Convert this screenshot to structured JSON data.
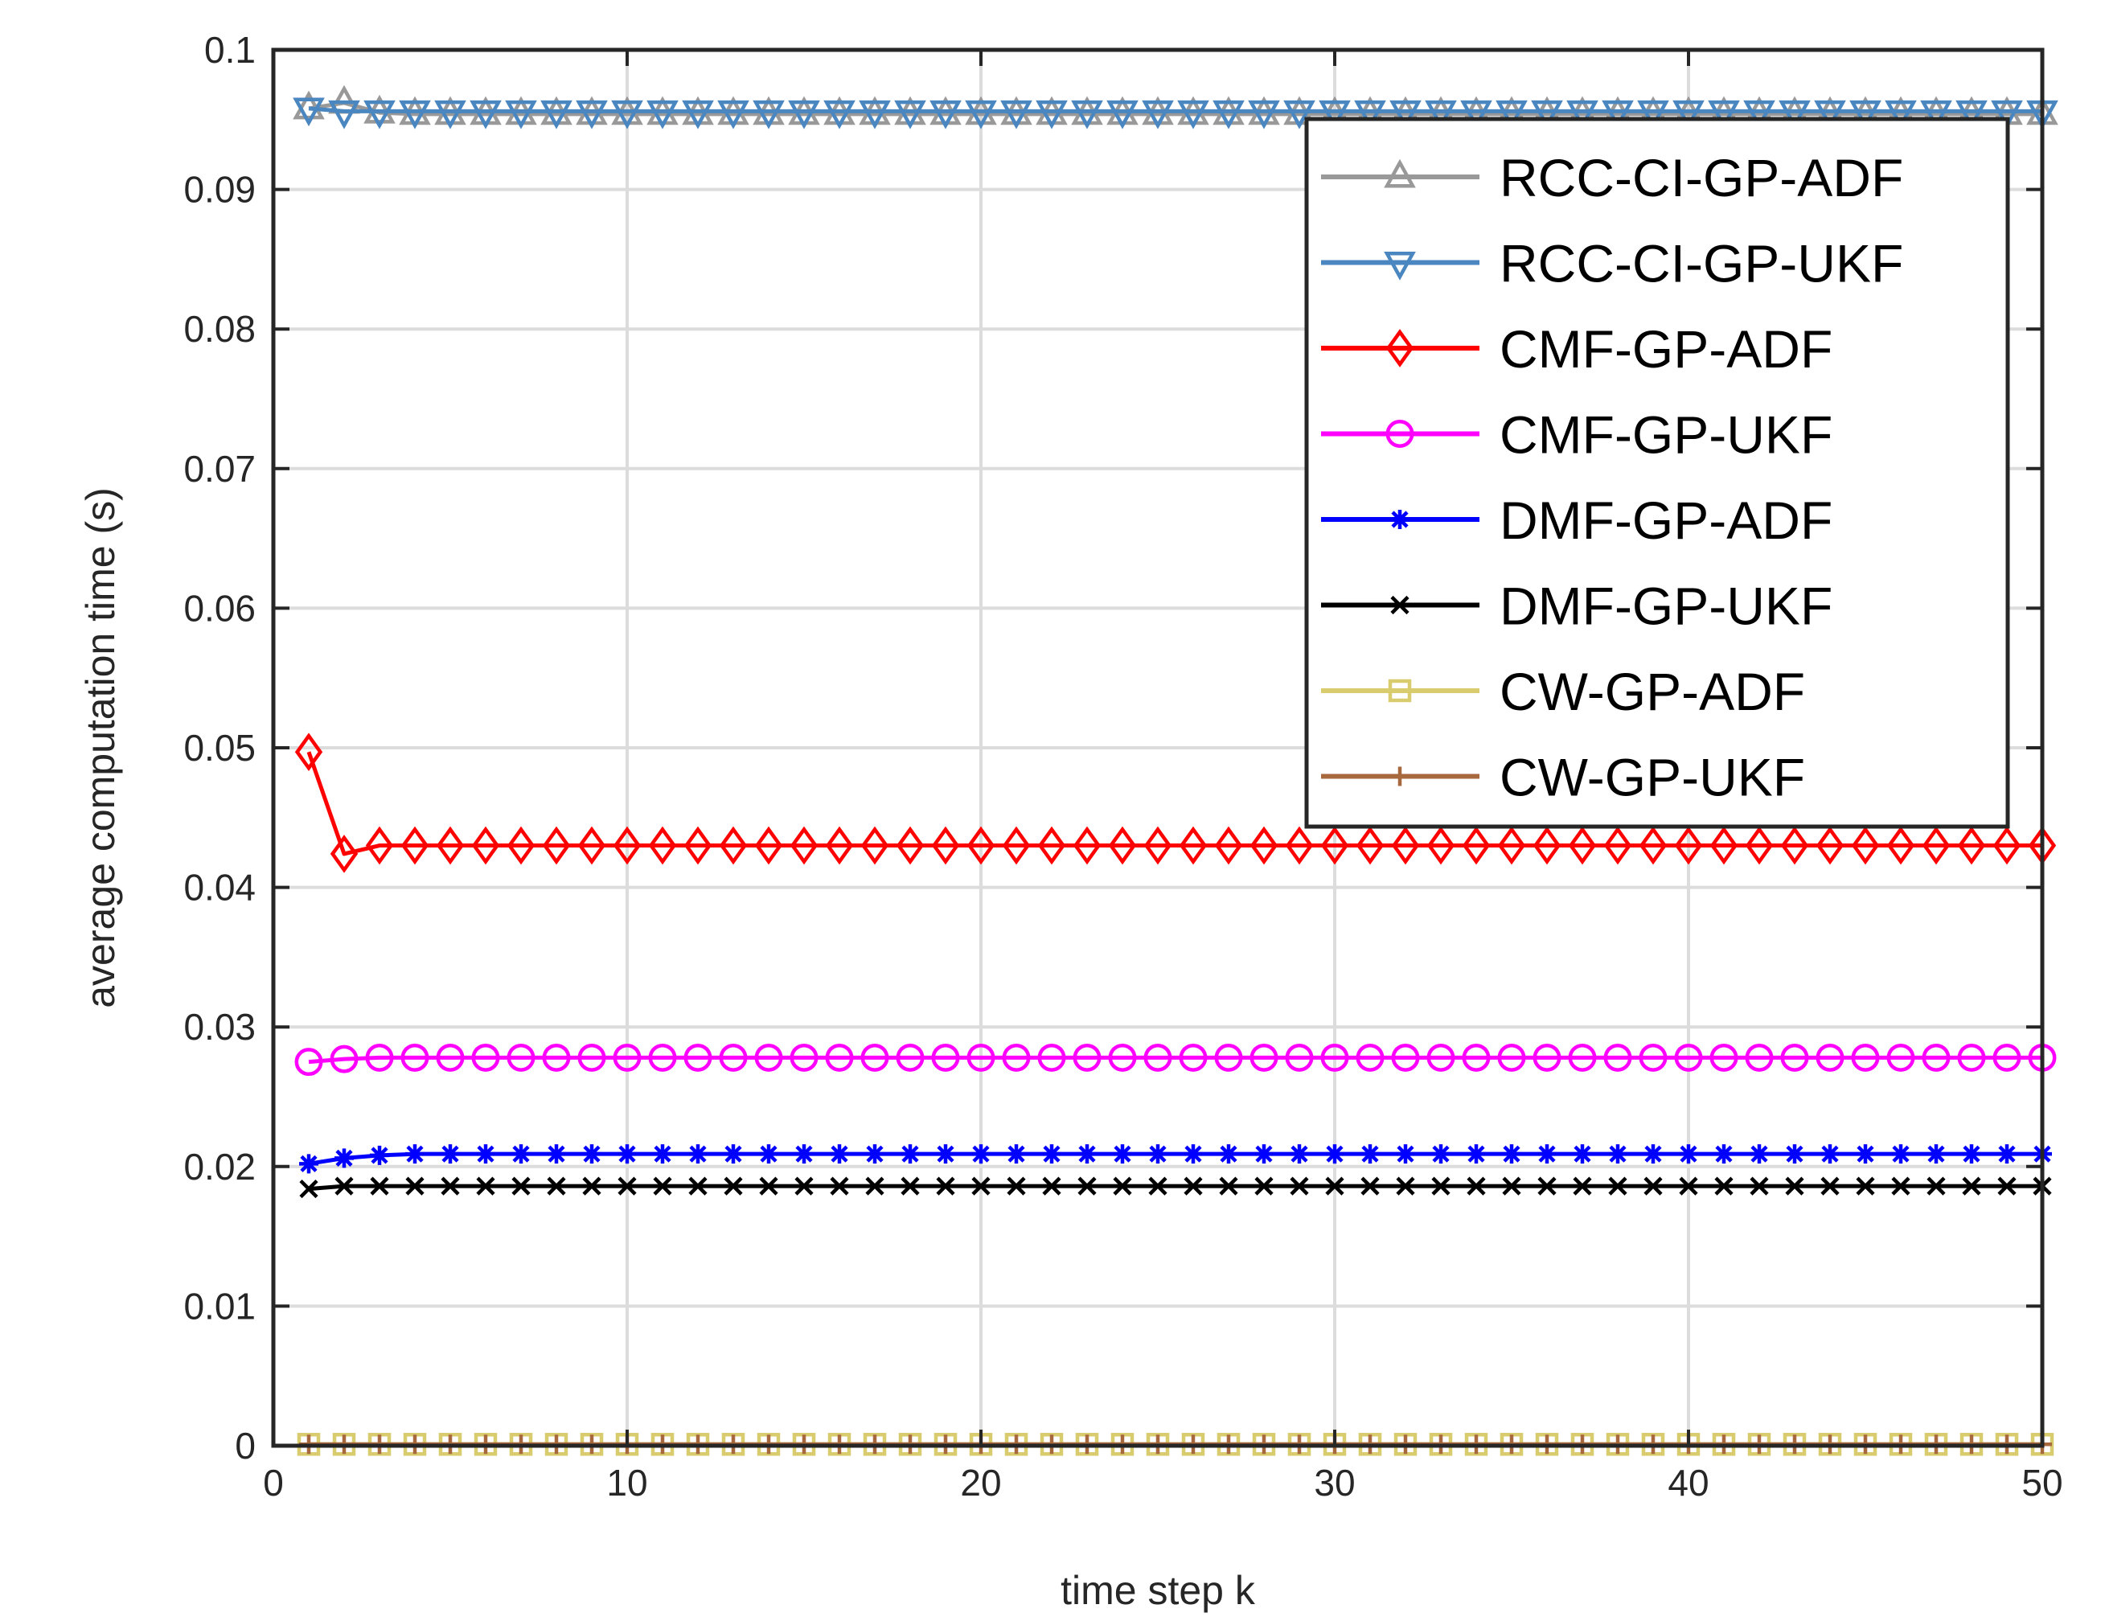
{
  "chart_data": {
    "type": "line",
    "title": "",
    "xlabel": "time step k",
    "ylabel": "average computation time (s)",
    "xlim": [
      0,
      50
    ],
    "ylim": [
      0,
      0.1
    ],
    "xticks": [
      0,
      10,
      20,
      30,
      40,
      50
    ],
    "xtick_labels": [
      "0",
      "10",
      "20",
      "30",
      "40",
      "50"
    ],
    "yticks": [
      0,
      0.01,
      0.02,
      0.03,
      0.04,
      0.05,
      0.06,
      0.07,
      0.08,
      0.09,
      0.1
    ],
    "ytick_labels": [
      "0",
      "0.01",
      "0.02",
      "0.03",
      "0.04",
      "0.05",
      "0.06",
      "0.07",
      "0.08",
      "0.09",
      "0.1"
    ],
    "grid": true,
    "legend_position": "top-right",
    "x_start": 1,
    "x_end": 50,
    "series": [
      {
        "name": "RCC-CI-GP-ADF",
        "color": "#999999",
        "marker": "triangle-up",
        "values": [
          0.0958,
          0.0962,
          0.0955,
          0.0954,
          0.0954,
          0.0954,
          0.0954,
          0.0954,
          0.0954,
          0.0954,
          0.0954,
          0.0954,
          0.0954,
          0.0954,
          0.0954,
          0.0954,
          0.0954,
          0.0954,
          0.0954,
          0.0954,
          0.0954,
          0.0954,
          0.0954,
          0.0954,
          0.0954,
          0.0954,
          0.0954,
          0.0954,
          0.0954,
          0.0954,
          0.0954,
          0.0954,
          0.0954,
          0.0954,
          0.0954,
          0.0954,
          0.0954,
          0.0954,
          0.0954,
          0.0954,
          0.0954,
          0.0954,
          0.0954,
          0.0954,
          0.0954,
          0.0954,
          0.0954,
          0.0954,
          0.0954,
          0.0954
        ]
      },
      {
        "name": "RCC-CI-GP-UKF",
        "color": "#4a86bf",
        "marker": "triangle-down",
        "values": [
          0.0958,
          0.0956,
          0.0956,
          0.0956,
          0.0956,
          0.0956,
          0.0956,
          0.0956,
          0.0956,
          0.0956,
          0.0956,
          0.0956,
          0.0956,
          0.0956,
          0.0956,
          0.0956,
          0.0956,
          0.0956,
          0.0956,
          0.0956,
          0.0956,
          0.0956,
          0.0956,
          0.0956,
          0.0956,
          0.0956,
          0.0956,
          0.0956,
          0.0956,
          0.0956,
          0.0956,
          0.0956,
          0.0956,
          0.0956,
          0.0956,
          0.0956,
          0.0956,
          0.0956,
          0.0956,
          0.0956,
          0.0956,
          0.0956,
          0.0956,
          0.0956,
          0.0956,
          0.0956,
          0.0956,
          0.0956,
          0.0956,
          0.0956
        ]
      },
      {
        "name": "CMF-GP-ADF",
        "color": "#ff0000",
        "marker": "diamond",
        "values": [
          0.0497,
          0.0424,
          0.043,
          0.043,
          0.043,
          0.043,
          0.043,
          0.043,
          0.043,
          0.043,
          0.043,
          0.043,
          0.043,
          0.043,
          0.043,
          0.043,
          0.043,
          0.043,
          0.043,
          0.043,
          0.043,
          0.043,
          0.043,
          0.043,
          0.043,
          0.043,
          0.043,
          0.043,
          0.043,
          0.043,
          0.043,
          0.043,
          0.043,
          0.043,
          0.043,
          0.043,
          0.043,
          0.043,
          0.043,
          0.043,
          0.043,
          0.043,
          0.043,
          0.043,
          0.043,
          0.043,
          0.043,
          0.043,
          0.043,
          0.043
        ]
      },
      {
        "name": "CMF-GP-UKF",
        "color": "#ff00ff",
        "marker": "circle",
        "values": [
          0.0275,
          0.0277,
          0.0278,
          0.0278,
          0.0278,
          0.0278,
          0.0278,
          0.0278,
          0.0278,
          0.0278,
          0.0278,
          0.0278,
          0.0278,
          0.0278,
          0.0278,
          0.0278,
          0.0278,
          0.0278,
          0.0278,
          0.0278,
          0.0278,
          0.0278,
          0.0278,
          0.0278,
          0.0278,
          0.0278,
          0.0278,
          0.0278,
          0.0278,
          0.0278,
          0.0278,
          0.0278,
          0.0278,
          0.0278,
          0.0278,
          0.0278,
          0.0278,
          0.0278,
          0.0278,
          0.0278,
          0.0278,
          0.0278,
          0.0278,
          0.0278,
          0.0278,
          0.0278,
          0.0278,
          0.0278,
          0.0278,
          0.0278
        ]
      },
      {
        "name": "DMF-GP-ADF",
        "color": "#0000ff",
        "marker": "asterisk",
        "values": [
          0.0202,
          0.0206,
          0.0208,
          0.0209,
          0.0209,
          0.0209,
          0.0209,
          0.0209,
          0.0209,
          0.0209,
          0.0209,
          0.0209,
          0.0209,
          0.0209,
          0.0209,
          0.0209,
          0.0209,
          0.0209,
          0.0209,
          0.0209,
          0.0209,
          0.0209,
          0.0209,
          0.0209,
          0.0209,
          0.0209,
          0.0209,
          0.0209,
          0.0209,
          0.0209,
          0.0209,
          0.0209,
          0.0209,
          0.0209,
          0.0209,
          0.0209,
          0.0209,
          0.0209,
          0.0209,
          0.0209,
          0.0209,
          0.0209,
          0.0209,
          0.0209,
          0.0209,
          0.0209,
          0.0209,
          0.0209,
          0.0209,
          0.0209
        ]
      },
      {
        "name": "DMF-GP-UKF",
        "color": "#000000",
        "marker": "x",
        "values": [
          0.0184,
          0.0186,
          0.0186,
          0.0186,
          0.0186,
          0.0186,
          0.0186,
          0.0186,
          0.0186,
          0.0186,
          0.0186,
          0.0186,
          0.0186,
          0.0186,
          0.0186,
          0.0186,
          0.0186,
          0.0186,
          0.0186,
          0.0186,
          0.0186,
          0.0186,
          0.0186,
          0.0186,
          0.0186,
          0.0186,
          0.0186,
          0.0186,
          0.0186,
          0.0186,
          0.0186,
          0.0186,
          0.0186,
          0.0186,
          0.0186,
          0.0186,
          0.0186,
          0.0186,
          0.0186,
          0.0186,
          0.0186,
          0.0186,
          0.0186,
          0.0186,
          0.0186,
          0.0186,
          0.0186,
          0.0186,
          0.0186,
          0.0186
        ]
      },
      {
        "name": "CW-GP-ADF",
        "color": "#d9cc6e",
        "marker": "square",
        "values": [
          0.0001,
          0.0001,
          0.0001,
          0.0001,
          0.0001,
          0.0001,
          0.0001,
          0.0001,
          0.0001,
          0.0001,
          0.0001,
          0.0001,
          0.0001,
          0.0001,
          0.0001,
          0.0001,
          0.0001,
          0.0001,
          0.0001,
          0.0001,
          0.0001,
          0.0001,
          0.0001,
          0.0001,
          0.0001,
          0.0001,
          0.0001,
          0.0001,
          0.0001,
          0.0001,
          0.0001,
          0.0001,
          0.0001,
          0.0001,
          0.0001,
          0.0001,
          0.0001,
          0.0001,
          0.0001,
          0.0001,
          0.0001,
          0.0001,
          0.0001,
          0.0001,
          0.0001,
          0.0001,
          0.0001,
          0.0001,
          0.0001,
          0.0001
        ]
      },
      {
        "name": "CW-GP-UKF",
        "color": "#a8683e",
        "marker": "plus",
        "values": [
          0.0001,
          0.0001,
          0.0001,
          0.0001,
          0.0001,
          0.0001,
          0.0001,
          0.0001,
          0.0001,
          0.0001,
          0.0001,
          0.0001,
          0.0001,
          0.0001,
          0.0001,
          0.0001,
          0.0001,
          0.0001,
          0.0001,
          0.0001,
          0.0001,
          0.0001,
          0.0001,
          0.0001,
          0.0001,
          0.0001,
          0.0001,
          0.0001,
          0.0001,
          0.0001,
          0.0001,
          0.0001,
          0.0001,
          0.0001,
          0.0001,
          0.0001,
          0.0001,
          0.0001,
          0.0001,
          0.0001,
          0.0001,
          0.0001,
          0.0001,
          0.0001,
          0.0001,
          0.0001,
          0.0001,
          0.0001,
          0.0001,
          0.0001
        ]
      }
    ]
  }
}
